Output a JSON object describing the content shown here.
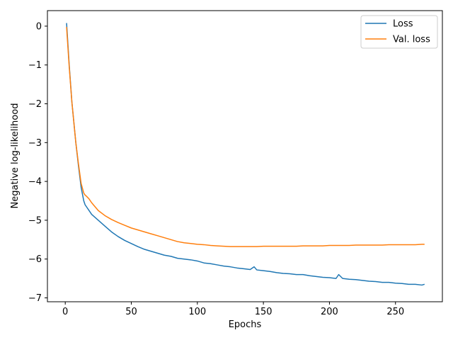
{
  "chart_data": {
    "type": "line",
    "title": "",
    "xlabel": "Epochs",
    "ylabel": "Negative log-likelihood",
    "xlim": [
      -13.5,
      285.5
    ],
    "ylim": [
      -7.1,
      0.4
    ],
    "xticks": [
      0,
      50,
      100,
      150,
      200,
      250
    ],
    "yticks": [
      0,
      -1,
      -2,
      -3,
      -4,
      -5,
      -6,
      -7
    ],
    "ytick_labels": [
      "0",
      "−1",
      "−2",
      "−3",
      "−4",
      "−5",
      "−6",
      "−7"
    ],
    "legend_position": "top-right",
    "grid": false,
    "series": [
      {
        "name": "Loss",
        "color": "#1f77b4",
        "x": [
          1,
          3,
          5,
          8,
          10,
          12,
          14,
          15,
          16,
          18,
          20,
          25,
          30,
          35,
          40,
          45,
          50,
          55,
          60,
          65,
          70,
          75,
          80,
          85,
          90,
          95,
          100,
          105,
          110,
          115,
          120,
          125,
          130,
          135,
          140,
          143,
          145,
          150,
          155,
          160,
          165,
          170,
          175,
          180,
          185,
          190,
          195,
          200,
          205,
          207,
          210,
          215,
          220,
          225,
          230,
          235,
          240,
          245,
          250,
          255,
          260,
          265,
          270,
          272
        ],
        "y": [
          0.08,
          -1.0,
          -1.95,
          -3.0,
          -3.6,
          -4.15,
          -4.5,
          -4.6,
          -4.65,
          -4.75,
          -4.85,
          -5.0,
          -5.15,
          -5.3,
          -5.42,
          -5.52,
          -5.6,
          -5.68,
          -5.75,
          -5.8,
          -5.85,
          -5.9,
          -5.93,
          -5.98,
          -6.0,
          -6.02,
          -6.05,
          -6.1,
          -6.12,
          -6.15,
          -6.18,
          -6.2,
          -6.23,
          -6.25,
          -6.27,
          -6.2,
          -6.28,
          -6.3,
          -6.32,
          -6.35,
          -6.37,
          -6.38,
          -6.4,
          -6.4,
          -6.43,
          -6.45,
          -6.47,
          -6.48,
          -6.5,
          -6.4,
          -6.5,
          -6.52,
          -6.53,
          -6.55,
          -6.57,
          -6.58,
          -6.6,
          -6.6,
          -6.62,
          -6.63,
          -6.65,
          -6.65,
          -6.67,
          -6.65
        ]
      },
      {
        "name": "Val. loss",
        "color": "#ff7f0e",
        "x": [
          1,
          3,
          5,
          8,
          10,
          12,
          14,
          15,
          16,
          18,
          20,
          25,
          30,
          35,
          40,
          45,
          50,
          55,
          60,
          65,
          70,
          75,
          80,
          85,
          90,
          95,
          100,
          105,
          110,
          115,
          120,
          125,
          130,
          135,
          140,
          145,
          150,
          155,
          160,
          165,
          170,
          175,
          180,
          185,
          190,
          195,
          200,
          205,
          210,
          215,
          220,
          225,
          230,
          235,
          240,
          245,
          250,
          255,
          260,
          265,
          270,
          272
        ],
        "y": [
          -0.02,
          -1.05,
          -1.95,
          -3.0,
          -3.55,
          -4.05,
          -4.3,
          -4.35,
          -4.38,
          -4.45,
          -4.55,
          -4.75,
          -4.88,
          -4.98,
          -5.06,
          -5.13,
          -5.2,
          -5.25,
          -5.3,
          -5.35,
          -5.4,
          -5.45,
          -5.5,
          -5.55,
          -5.58,
          -5.6,
          -5.62,
          -5.63,
          -5.65,
          -5.66,
          -5.67,
          -5.68,
          -5.68,
          -5.68,
          -5.68,
          -5.68,
          -5.67,
          -5.67,
          -5.67,
          -5.67,
          -5.67,
          -5.67,
          -5.66,
          -5.66,
          -5.66,
          -5.66,
          -5.65,
          -5.65,
          -5.65,
          -5.65,
          -5.64,
          -5.64,
          -5.64,
          -5.64,
          -5.64,
          -5.63,
          -5.63,
          -5.63,
          -5.63,
          -5.63,
          -5.62,
          -5.62
        ]
      }
    ]
  }
}
